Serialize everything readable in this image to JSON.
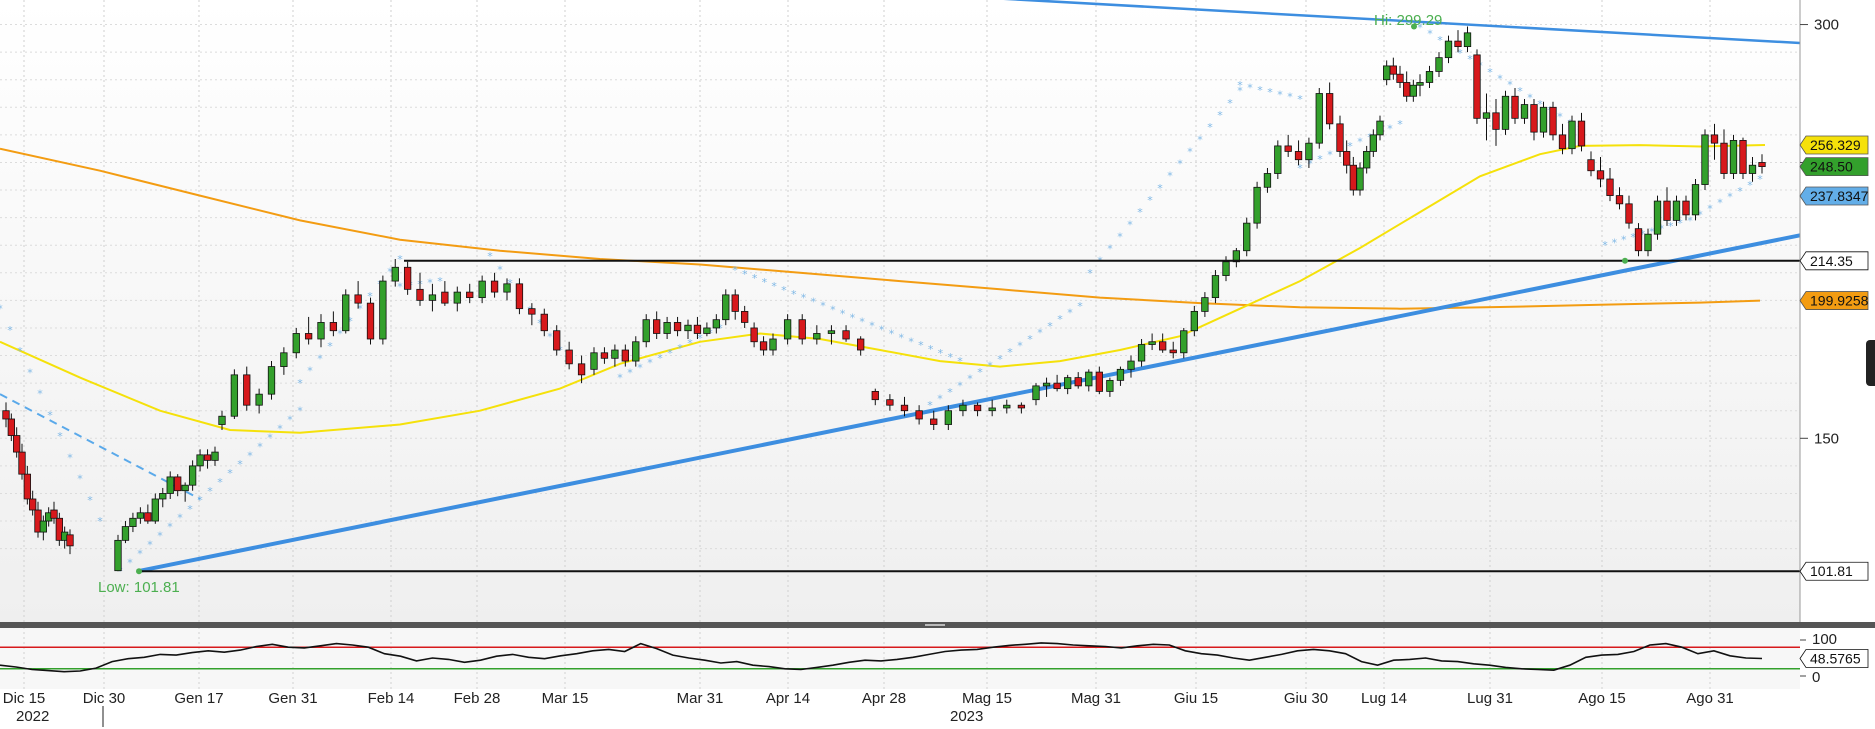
{
  "chart_data": [
    {
      "type": "candlestick",
      "panel": "price",
      "y_ticks": [
        150,
        200,
        250,
        300
      ],
      "y_tick_labels_shown": [
        "150",
        "300"
      ],
      "ylim": [
        95,
        306
      ],
      "x_tick_labels": [
        "Dic 15",
        "Dic 30",
        "Gen 17",
        "Gen 31",
        "Feb 14",
        "Feb 28",
        "Mar 15",
        "Mar 31",
        "Apr 14",
        "Apr 28",
        "Mag 15",
        "Mag 31",
        "Giu 15",
        "Giu 30",
        "Lug 14",
        "Lug 31",
        "Ago 15",
        "Ago 31"
      ],
      "year_labels": [
        "2022",
        "2023"
      ],
      "grid": true,
      "ohlc": [
        {
          "o": 160,
          "h": 163,
          "l": 154,
          "c": 157
        },
        {
          "o": 157,
          "h": 159,
          "l": 149,
          "c": 151
        },
        {
          "o": 151,
          "h": 154,
          "l": 143,
          "c": 145
        },
        {
          "o": 145,
          "h": 148,
          "l": 135,
          "c": 137
        },
        {
          "o": 137,
          "h": 140,
          "l": 126,
          "c": 128
        },
        {
          "o": 128,
          "h": 131,
          "l": 122,
          "c": 124
        },
        {
          "o": 124,
          "h": 127,
          "l": 114,
          "c": 116
        },
        {
          "o": 116,
          "h": 122,
          "l": 113,
          "c": 120
        },
        {
          "o": 120,
          "h": 125,
          "l": 118,
          "c": 123
        },
        {
          "o": 124,
          "h": 127,
          "l": 119,
          "c": 121
        },
        {
          "o": 121,
          "h": 123,
          "l": 111,
          "c": 113
        },
        {
          "o": 113,
          "h": 118,
          "l": 110,
          "c": 116
        },
        {
          "o": 115,
          "h": 117,
          "l": 108,
          "c": 111
        },
        {
          "o": 102,
          "h": 115,
          "l": 101.81,
          "c": 113
        },
        {
          "o": 113,
          "h": 120,
          "l": 112,
          "c": 118
        },
        {
          "o": 118,
          "h": 123,
          "l": 116,
          "c": 121
        },
        {
          "o": 121,
          "h": 125,
          "l": 119,
          "c": 123
        },
        {
          "o": 123,
          "h": 126,
          "l": 119,
          "c": 120
        },
        {
          "o": 120,
          "h": 130,
          "l": 119,
          "c": 128
        },
        {
          "o": 128,
          "h": 132,
          "l": 125,
          "c": 130
        },
        {
          "o": 130,
          "h": 138,
          "l": 128,
          "c": 136
        },
        {
          "o": 136,
          "h": 137,
          "l": 129,
          "c": 131
        },
        {
          "o": 131,
          "h": 134,
          "l": 127,
          "c": 133
        },
        {
          "o": 133,
          "h": 142,
          "l": 131,
          "c": 140
        },
        {
          "o": 140,
          "h": 146,
          "l": 138,
          "c": 144
        },
        {
          "o": 144,
          "h": 146,
          "l": 139,
          "c": 142
        },
        {
          "o": 142,
          "h": 147,
          "l": 140,
          "c": 145
        },
        {
          "o": 155,
          "h": 160,
          "l": 153,
          "c": 158
        },
        {
          "o": 158,
          "h": 175,
          "l": 157,
          "c": 173
        },
        {
          "o": 173,
          "h": 176,
          "l": 160,
          "c": 162
        },
        {
          "o": 162,
          "h": 168,
          "l": 159,
          "c": 166
        },
        {
          "o": 166,
          "h": 178,
          "l": 164,
          "c": 176
        },
        {
          "o": 176,
          "h": 183,
          "l": 173,
          "c": 181
        },
        {
          "o": 181,
          "h": 190,
          "l": 179,
          "c": 188
        },
        {
          "o": 188,
          "h": 194,
          "l": 184,
          "c": 186
        },
        {
          "o": 186,
          "h": 195,
          "l": 183,
          "c": 192
        },
        {
          "o": 192,
          "h": 196,
          "l": 187,
          "c": 189
        },
        {
          "o": 189,
          "h": 204,
          "l": 188,
          "c": 202
        },
        {
          "o": 202,
          "h": 207,
          "l": 197,
          "c": 199
        },
        {
          "o": 199,
          "h": 201,
          "l": 184,
          "c": 186
        },
        {
          "o": 186,
          "h": 209,
          "l": 184,
          "c": 207
        },
        {
          "o": 207,
          "h": 215,
          "l": 205,
          "c": 212
        },
        {
          "o": 212,
          "h": 214,
          "l": 202,
          "c": 204
        },
        {
          "o": 204,
          "h": 210,
          "l": 198,
          "c": 200
        },
        {
          "o": 200,
          "h": 206,
          "l": 196,
          "c": 202
        },
        {
          "o": 203,
          "h": 207,
          "l": 198,
          "c": 199
        },
        {
          "o": 199,
          "h": 205,
          "l": 196,
          "c": 203
        },
        {
          "o": 203,
          "h": 206,
          "l": 199,
          "c": 201
        },
        {
          "o": 201,
          "h": 209,
          "l": 199,
          "c": 207
        },
        {
          "o": 207,
          "h": 210,
          "l": 201,
          "c": 203
        },
        {
          "o": 203,
          "h": 208,
          "l": 200,
          "c": 206
        },
        {
          "o": 206,
          "h": 208,
          "l": 195,
          "c": 197
        },
        {
          "o": 197,
          "h": 199,
          "l": 191,
          "c": 195
        },
        {
          "o": 195,
          "h": 197,
          "l": 187,
          "c": 189
        },
        {
          "o": 189,
          "h": 191,
          "l": 180,
          "c": 182
        },
        {
          "o": 182,
          "h": 185,
          "l": 175,
          "c": 177
        },
        {
          "o": 177,
          "h": 180,
          "l": 170,
          "c": 173
        },
        {
          "o": 175,
          "h": 183,
          "l": 173,
          "c": 181
        },
        {
          "o": 181,
          "h": 183,
          "l": 177,
          "c": 179
        },
        {
          "o": 179,
          "h": 184,
          "l": 176,
          "c": 182
        },
        {
          "o": 182,
          "h": 184,
          "l": 176,
          "c": 178
        },
        {
          "o": 178,
          "h": 187,
          "l": 176,
          "c": 185
        },
        {
          "o": 185,
          "h": 195,
          "l": 183,
          "c": 193
        },
        {
          "o": 193,
          "h": 196,
          "l": 186,
          "c": 188
        },
        {
          "o": 188,
          "h": 194,
          "l": 186,
          "c": 192
        },
        {
          "o": 192,
          "h": 194,
          "l": 187,
          "c": 189
        },
        {
          "o": 189,
          "h": 193,
          "l": 186,
          "c": 191
        },
        {
          "o": 191,
          "h": 194,
          "l": 186,
          "c": 188
        },
        {
          "o": 188,
          "h": 192,
          "l": 187,
          "c": 190
        },
        {
          "o": 190,
          "h": 195,
          "l": 188,
          "c": 193
        },
        {
          "o": 193,
          "h": 204,
          "l": 191,
          "c": 202
        },
        {
          "o": 202,
          "h": 204,
          "l": 193,
          "c": 196
        },
        {
          "o": 196,
          "h": 198,
          "l": 190,
          "c": 192
        },
        {
          "o": 190,
          "h": 192,
          "l": 183,
          "c": 185
        },
        {
          "o": 185,
          "h": 187,
          "l": 180,
          "c": 182
        },
        {
          "o": 182,
          "h": 188,
          "l": 180,
          "c": 186
        },
        {
          "o": 186,
          "h": 195,
          "l": 184,
          "c": 193
        },
        {
          "o": 193,
          "h": 195,
          "l": 184,
          "c": 186
        },
        {
          "o": 186,
          "h": 191,
          "l": 184,
          "c": 188
        },
        {
          "o": 188,
          "h": 191,
          "l": 184,
          "c": 189
        },
        {
          "o": 189,
          "h": 191,
          "l": 185,
          "c": 186
        },
        {
          "o": 186,
          "h": 187,
          "l": 180,
          "c": 182
        },
        {
          "o": 167,
          "h": 168,
          "l": 162,
          "c": 164
        },
        {
          "o": 164,
          "h": 166,
          "l": 160,
          "c": 162
        },
        {
          "o": 162,
          "h": 165,
          "l": 158,
          "c": 160
        },
        {
          "o": 160,
          "h": 162,
          "l": 155,
          "c": 157
        },
        {
          "o": 157,
          "h": 160,
          "l": 153,
          "c": 155
        },
        {
          "o": 155,
          "h": 162,
          "l": 153,
          "c": 160
        },
        {
          "o": 160,
          "h": 164,
          "l": 158,
          "c": 162
        },
        {
          "o": 162,
          "h": 163,
          "l": 158,
          "c": 160
        },
        {
          "o": 160,
          "h": 164,
          "l": 158,
          "c": 161
        },
        {
          "o": 161,
          "h": 164,
          "l": 159,
          "c": 162
        },
        {
          "o": 162,
          "h": 163,
          "l": 159,
          "c": 161
        },
        {
          "o": 164,
          "h": 170,
          "l": 162,
          "c": 169
        },
        {
          "o": 169,
          "h": 172,
          "l": 165,
          "c": 170
        },
        {
          "o": 170,
          "h": 173,
          "l": 167,
          "c": 168
        },
        {
          "o": 168,
          "h": 173,
          "l": 166,
          "c": 172
        },
        {
          "o": 172,
          "h": 174,
          "l": 168,
          "c": 169
        },
        {
          "o": 169,
          "h": 175,
          "l": 167,
          "c": 174
        },
        {
          "o": 174,
          "h": 176,
          "l": 166,
          "c": 167
        },
        {
          "o": 167,
          "h": 172,
          "l": 165,
          "c": 171
        },
        {
          "o": 171,
          "h": 176,
          "l": 169,
          "c": 175
        },
        {
          "o": 175,
          "h": 180,
          "l": 172,
          "c": 178
        },
        {
          "o": 178,
          "h": 186,
          "l": 176,
          "c": 184
        },
        {
          "o": 184,
          "h": 188,
          "l": 182,
          "c": 185
        },
        {
          "o": 185,
          "h": 188,
          "l": 181,
          "c": 182
        },
        {
          "o": 182,
          "h": 185,
          "l": 179,
          "c": 181
        },
        {
          "o": 181,
          "h": 190,
          "l": 179,
          "c": 189
        },
        {
          "o": 189,
          "h": 198,
          "l": 187,
          "c": 196
        },
        {
          "o": 196,
          "h": 203,
          "l": 194,
          "c": 201
        },
        {
          "o": 201,
          "h": 211,
          "l": 199,
          "c": 209
        },
        {
          "o": 209,
          "h": 216,
          "l": 207,
          "c": 214
        },
        {
          "o": 214,
          "h": 219,
          "l": 212,
          "c": 218
        },
        {
          "o": 218,
          "h": 230,
          "l": 216,
          "c": 228
        },
        {
          "o": 228,
          "h": 243,
          "l": 226,
          "c": 241
        },
        {
          "o": 241,
          "h": 248,
          "l": 239,
          "c": 246
        },
        {
          "o": 246,
          "h": 258,
          "l": 244,
          "c": 256
        },
        {
          "o": 256,
          "h": 260,
          "l": 252,
          "c": 254
        },
        {
          "o": 254,
          "h": 258,
          "l": 249,
          "c": 251
        },
        {
          "o": 251,
          "h": 259,
          "l": 248,
          "c": 257
        },
        {
          "o": 257,
          "h": 277,
          "l": 255,
          "c": 275
        },
        {
          "o": 275,
          "h": 279,
          "l": 262,
          "c": 264
        },
        {
          "o": 264,
          "h": 267,
          "l": 252,
          "c": 254
        },
        {
          "o": 254,
          "h": 258,
          "l": 246,
          "c": 249
        },
        {
          "o": 249,
          "h": 252,
          "l": 238,
          "c": 240
        },
        {
          "o": 240,
          "h": 250,
          "l": 238,
          "c": 248
        },
        {
          "o": 248,
          "h": 256,
          "l": 246,
          "c": 254
        },
        {
          "o": 254,
          "h": 262,
          "l": 252,
          "c": 260
        },
        {
          "o": 260,
          "h": 267,
          "l": 258,
          "c": 265
        },
        {
          "o": 280,
          "h": 287,
          "l": 278,
          "c": 285
        },
        {
          "o": 285,
          "h": 288,
          "l": 280,
          "c": 282
        },
        {
          "o": 282,
          "h": 285,
          "l": 277,
          "c": 279
        },
        {
          "o": 279,
          "h": 283,
          "l": 272,
          "c": 274
        },
        {
          "o": 274,
          "h": 280,
          "l": 272,
          "c": 278
        },
        {
          "o": 278,
          "h": 282,
          "l": 274,
          "c": 279
        },
        {
          "o": 279,
          "h": 285,
          "l": 277,
          "c": 283
        },
        {
          "o": 283,
          "h": 290,
          "l": 281,
          "c": 288
        },
        {
          "o": 288,
          "h": 296,
          "l": 286,
          "c": 294
        },
        {
          "o": 294,
          "h": 298,
          "l": 290,
          "c": 292
        },
        {
          "o": 292,
          "h": 299.29,
          "l": 290,
          "c": 297
        },
        {
          "o": 289,
          "h": 291,
          "l": 264,
          "c": 266
        },
        {
          "o": 266,
          "h": 275,
          "l": 258,
          "c": 268
        },
        {
          "o": 268,
          "h": 273,
          "l": 256,
          "c": 262
        },
        {
          "o": 262,
          "h": 276,
          "l": 260,
          "c": 274
        },
        {
          "o": 274,
          "h": 277,
          "l": 264,
          "c": 266
        },
        {
          "o": 266,
          "h": 273,
          "l": 264,
          "c": 271
        },
        {
          "o": 271,
          "h": 273,
          "l": 258,
          "c": 261
        },
        {
          "o": 261,
          "h": 272,
          "l": 259,
          "c": 270
        },
        {
          "o": 270,
          "h": 272,
          "l": 258,
          "c": 260
        },
        {
          "o": 260,
          "h": 264,
          "l": 253,
          "c": 255
        },
        {
          "o": 255,
          "h": 267,
          "l": 253,
          "c": 265
        },
        {
          "o": 265,
          "h": 268,
          "l": 254,
          "c": 256
        },
        {
          "o": 251,
          "h": 254,
          "l": 245,
          "c": 247
        },
        {
          "o": 247,
          "h": 252,
          "l": 241,
          "c": 244
        },
        {
          "o": 244,
          "h": 248,
          "l": 236,
          "c": 238
        },
        {
          "o": 238,
          "h": 241,
          "l": 233,
          "c": 235
        },
        {
          "o": 235,
          "h": 238,
          "l": 226,
          "c": 228
        },
        {
          "o": 226,
          "h": 228,
          "l": 216,
          "c": 218
        },
        {
          "o": 218,
          "h": 226,
          "l": 216,
          "c": 224
        },
        {
          "o": 224,
          "h": 238,
          "l": 222,
          "c": 236
        },
        {
          "o": 236,
          "h": 241,
          "l": 227,
          "c": 229
        },
        {
          "o": 229,
          "h": 238,
          "l": 227,
          "c": 236
        },
        {
          "o": 236,
          "h": 238,
          "l": 229,
          "c": 231
        },
        {
          "o": 231,
          "h": 244,
          "l": 229,
          "c": 242
        },
        {
          "o": 242,
          "h": 262,
          "l": 240,
          "c": 260
        },
        {
          "o": 260,
          "h": 264,
          "l": 251,
          "c": 257
        },
        {
          "o": 257,
          "h": 262,
          "l": 244,
          "c": 246
        },
        {
          "o": 246,
          "h": 260,
          "l": 244,
          "c": 258
        },
        {
          "o": 258,
          "h": 259,
          "l": 244,
          "c": 246
        },
        {
          "o": 246,
          "h": 252,
          "l": 243,
          "c": 249
        },
        {
          "o": 250,
          "h": 253,
          "l": 246,
          "c": 248.5
        }
      ],
      "moving_averages": {
        "yellow_last": 256.329,
        "orange_last": 199.9258
      },
      "horizontal_levels": [
        214.35,
        101.81
      ],
      "annotations": [
        "Hi: 299.29",
        "Low: 101.81"
      ],
      "price_labels": [
        "256.329",
        "248.50",
        "237.8347",
        "214.35",
        "199.9258",
        "101.81"
      ]
    },
    {
      "type": "line",
      "panel": "oscillator",
      "y_ticks": [
        0,
        100
      ],
      "ylim": [
        0,
        100
      ],
      "upper_band": 80,
      "lower_band": 20,
      "last_value_label": "48.5765"
    }
  ]
}
